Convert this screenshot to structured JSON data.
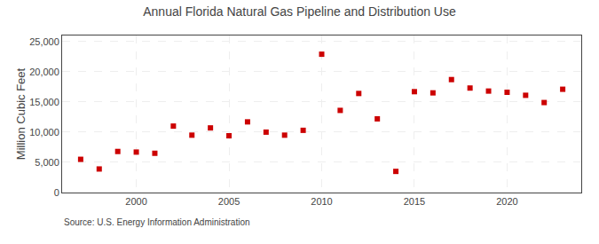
{
  "chart_data": {
    "type": "scatter",
    "title": "Annual Florida Natural Gas Pipeline and Distribution Use",
    "ylabel": "Million Cubic Feet",
    "annotations": [
      "Source: U.S. Energy Information Administration"
    ],
    "x": [
      1997,
      1998,
      1999,
      2000,
      2001,
      2002,
      2003,
      2004,
      2005,
      2006,
      2007,
      2008,
      2009,
      2010,
      2011,
      2012,
      2013,
      2014,
      2015,
      2016,
      2017,
      2018,
      2019,
      2020,
      2021,
      2022,
      2023
    ],
    "values": [
      5500,
      3900,
      6800,
      6700,
      6500,
      11000,
      9500,
      10700,
      9400,
      11700,
      10000,
      9500,
      10300,
      22900,
      13600,
      16400,
      12200,
      3500,
      16700,
      16500,
      18700,
      17300,
      16800,
      16600,
      16100,
      14900,
      17100
    ],
    "color": "#cc0000",
    "marker": "square",
    "xlim": [
      1996,
      2024
    ],
    "xticks": [
      2000,
      2005,
      2010,
      2015,
      2020
    ],
    "ylim": [
      0,
      26000
    ],
    "yticks": [
      0,
      {
        "value": 5000,
        "label": "5,000"
      },
      {
        "value": 10000,
        "label": "10,000"
      },
      {
        "value": 15000,
        "label": "15,000"
      },
      {
        "value": 20000,
        "label": "20,000"
      },
      {
        "value": 25000,
        "label": "25,000"
      }
    ],
    "grid": true
  }
}
